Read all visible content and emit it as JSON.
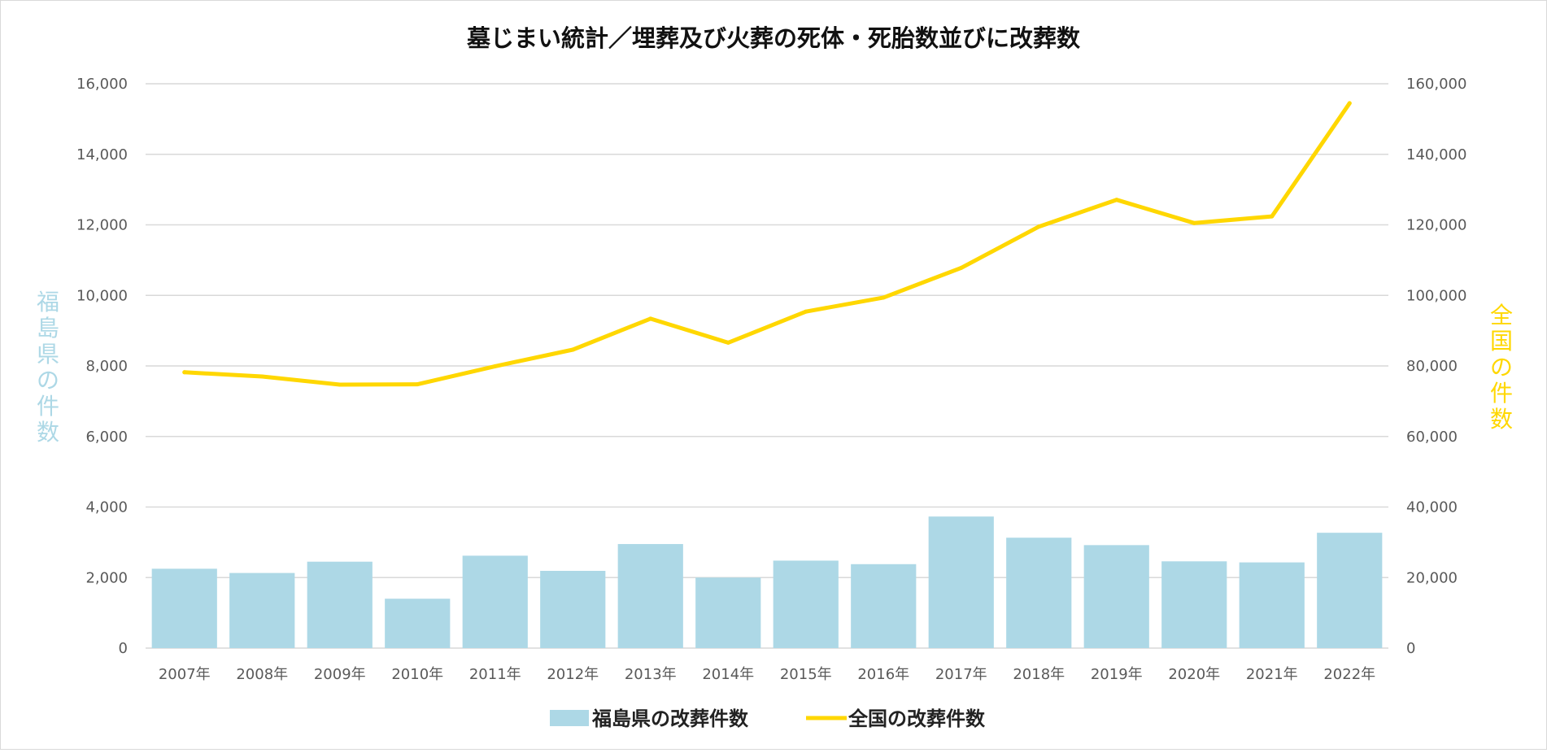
{
  "chart_data": {
    "type": "bar+line",
    "title": "墓じまい統計／埋葬及び火葬の死体・死胎数並びに改葬数",
    "categories": [
      "2007年",
      "2008年",
      "2009年",
      "2010年",
      "2011年",
      "2012年",
      "2013年",
      "2014年",
      "2015年",
      "2016年",
      "2017年",
      "2018年",
      "2019年",
      "2020年",
      "2021年",
      "2022年"
    ],
    "series": [
      {
        "name": "福島県の改葬件数",
        "type": "bar",
        "axis": "left",
        "color": "#add8e6",
        "values": [
          2250,
          2130,
          2450,
          1400,
          2620,
          2190,
          2950,
          2000,
          2480,
          2380,
          3730,
          3130,
          2920,
          2460,
          2430,
          3270
        ]
      },
      {
        "name": "全国の改葬件数",
        "type": "line",
        "axis": "right",
        "color": "#ffd700",
        "values": [
          78200,
          77000,
          74700,
          74800,
          79900,
          84600,
          93400,
          86600,
          95400,
          99400,
          107800,
          119500,
          127100,
          120500,
          122400,
          154500
        ]
      }
    ],
    "y_left": {
      "label": "福島県の件数",
      "range": [
        0,
        16000
      ],
      "ticks": [
        "0",
        "2,000",
        "4,000",
        "6,000",
        "8,000",
        "10,000",
        "12,000",
        "14,000",
        "16,000"
      ],
      "color": "#add8e6"
    },
    "y_right": {
      "label": "全国の件数",
      "range": [
        0,
        160000
      ],
      "ticks": [
        "0",
        "20,000",
        "40,000",
        "60,000",
        "80,000",
        "100,000",
        "120,000",
        "140,000",
        "160,000"
      ],
      "color": "#ffd700"
    },
    "grid": true,
    "legend_position": "bottom"
  }
}
